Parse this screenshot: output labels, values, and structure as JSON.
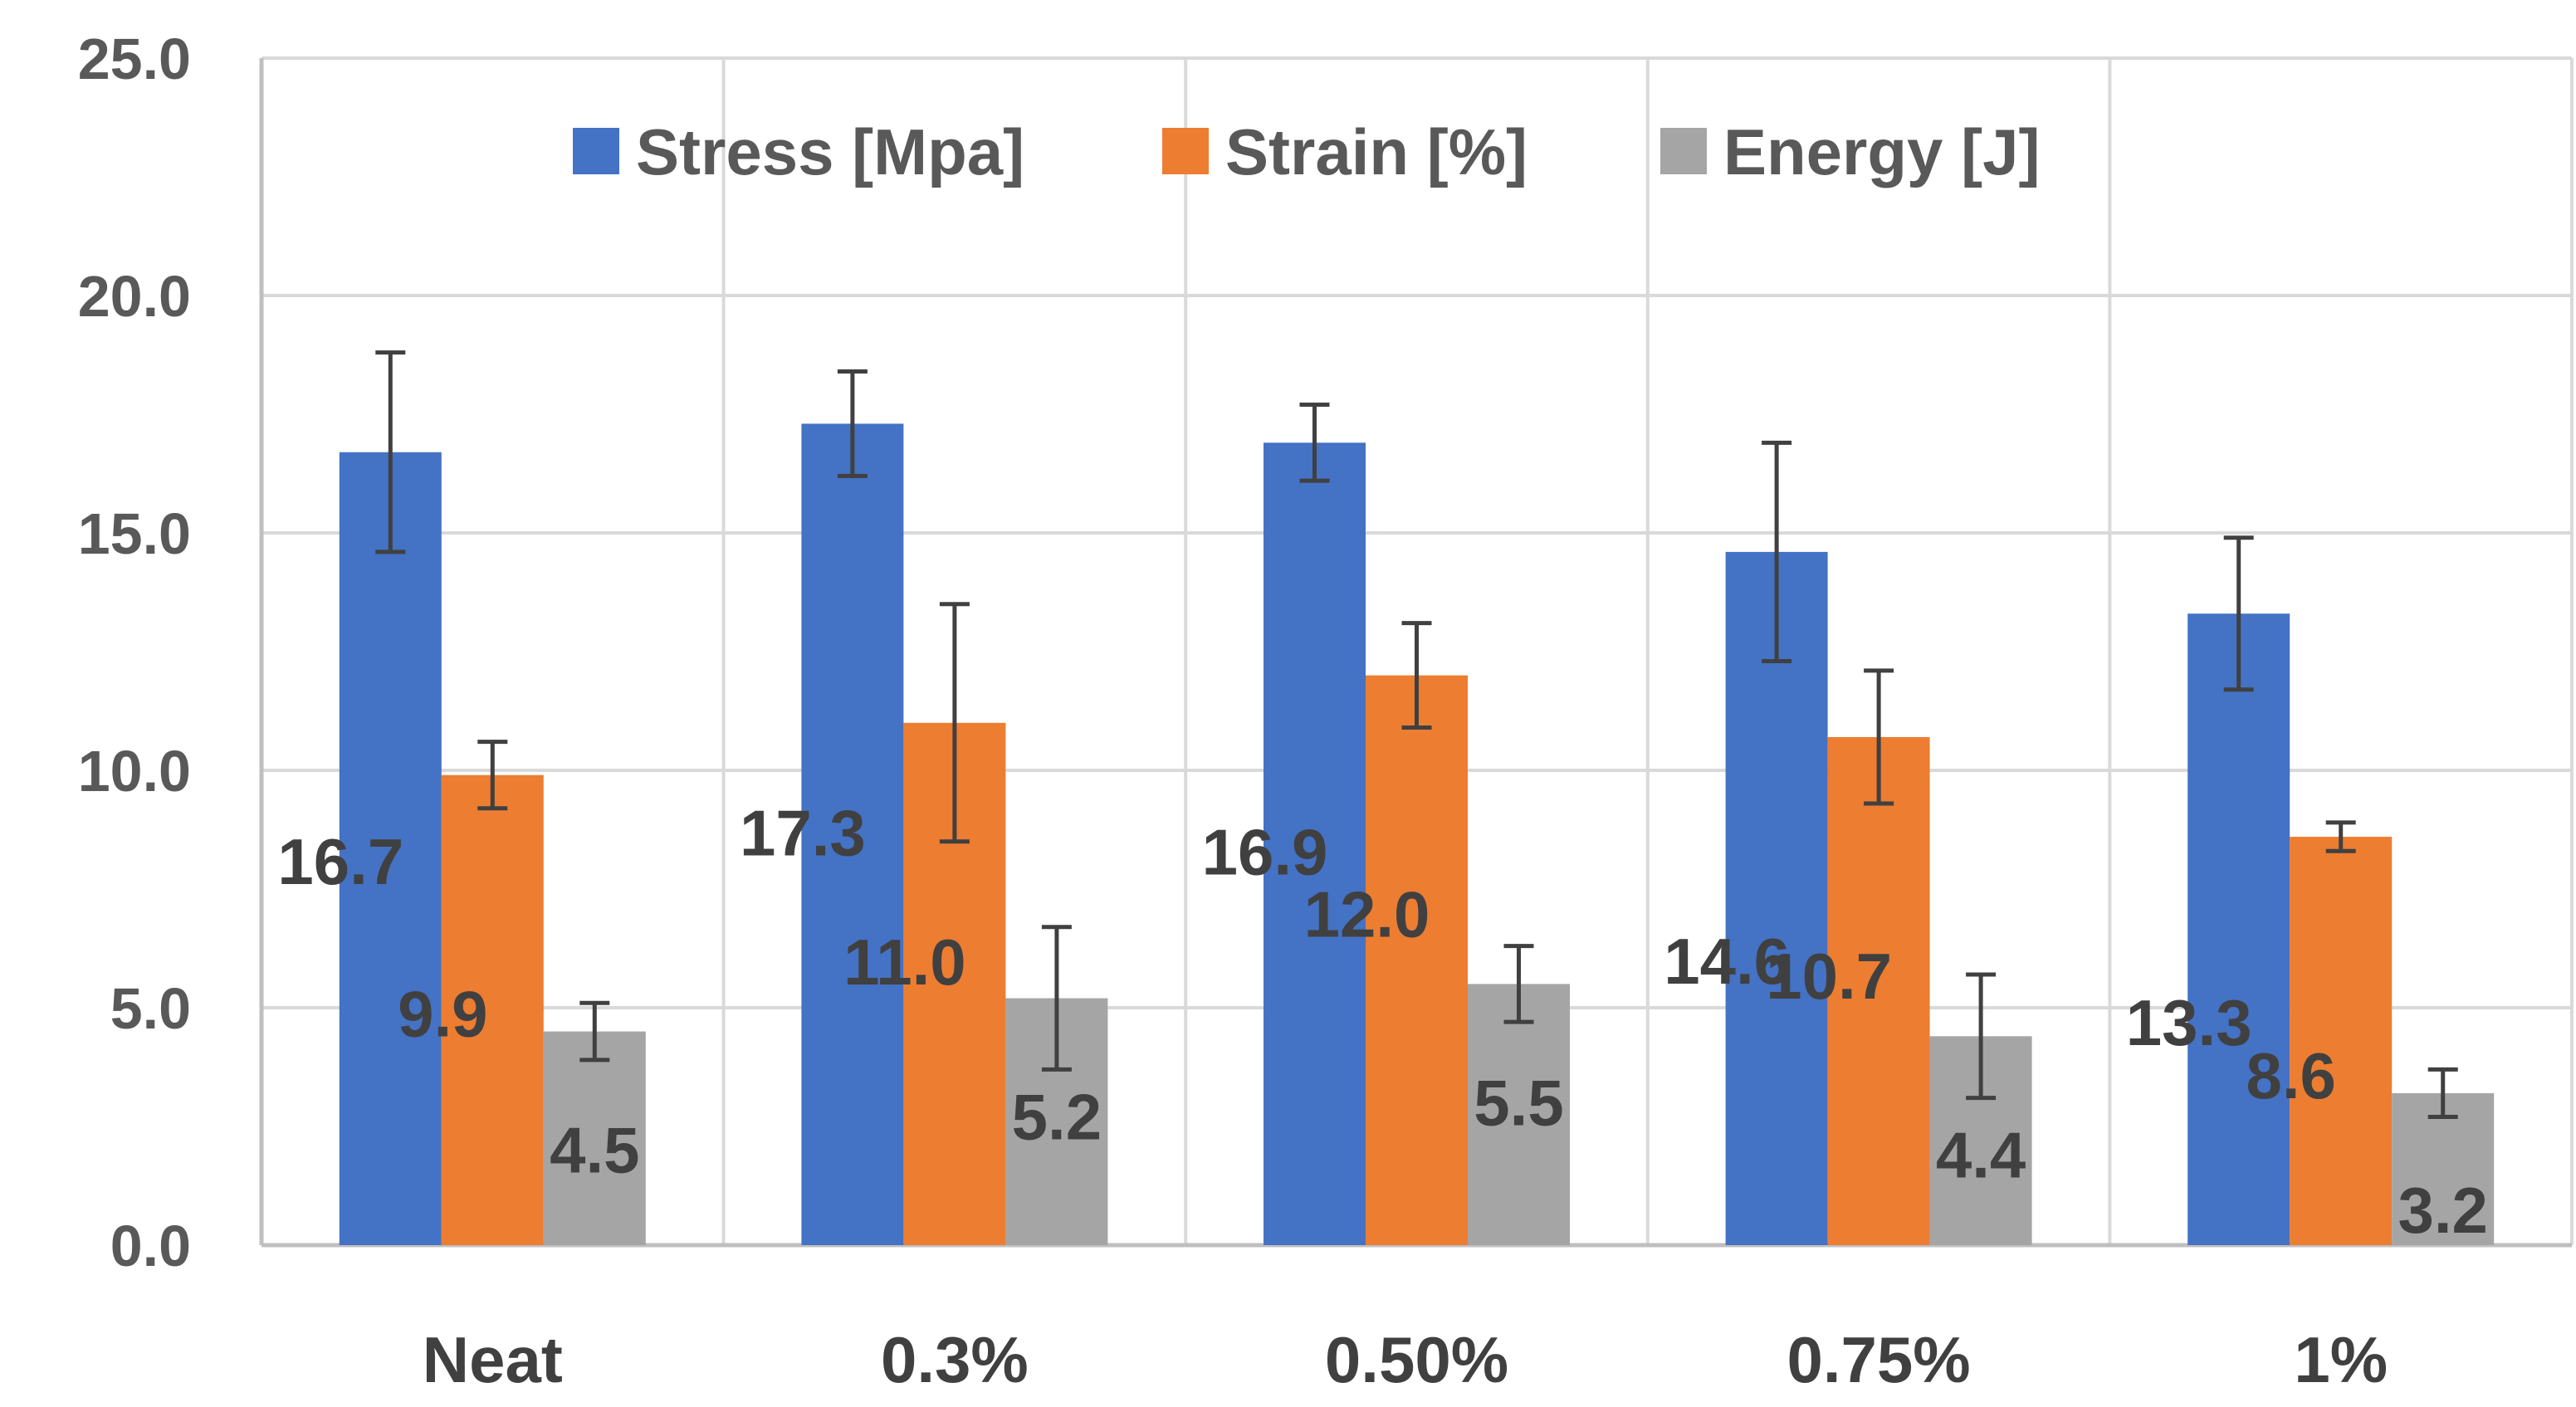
{
  "chart_data": {
    "type": "bar",
    "title": "",
    "xlabel": "",
    "ylabel": "",
    "categories": [
      "Neat",
      "0.3%",
      "0.50%",
      "0.75%",
      "1%"
    ],
    "series": [
      {
        "name": "Stress [Mpa]",
        "color": "#4472C4",
        "values": [
          16.7,
          17.3,
          16.9,
          14.6,
          13.3
        ],
        "errors": [
          2.1,
          1.1,
          0.8,
          2.3,
          1.6
        ]
      },
      {
        "name": "Strain [%]",
        "color": "#ED7D31",
        "values": [
          9.9,
          11.0,
          12.0,
          10.7,
          8.6
        ],
        "errors": [
          0.7,
          2.5,
          1.1,
          1.4,
          0.3
        ]
      },
      {
        "name": "Energy [J]",
        "color": "#A5A5A5",
        "values": [
          4.5,
          5.2,
          5.5,
          4.4,
          3.2
        ],
        "errors": [
          0.6,
          1.5,
          0.8,
          1.3,
          0.5
        ]
      }
    ],
    "data_labels": [
      [
        "16.7",
        "17.3",
        "16.9",
        "14.6",
        "13.3"
      ],
      [
        "9.9",
        "11.0",
        "12.0",
        "10.7",
        "8.6"
      ],
      [
        "4.5",
        "5.2",
        "5.5",
        "4.4",
        "3.2"
      ]
    ],
    "ylim": [
      0,
      25
    ],
    "yticks": [
      0,
      5,
      10,
      15,
      20,
      25
    ],
    "ytick_labels": [
      "0.0",
      "5.0",
      "10.0",
      "15.0",
      "20.0",
      "25.0"
    ],
    "grid": true,
    "legend_position": "top-center",
    "colors": {
      "grid": "#D9D9D9",
      "axis": "#BFBFBF",
      "error_bar": "#404040"
    }
  }
}
